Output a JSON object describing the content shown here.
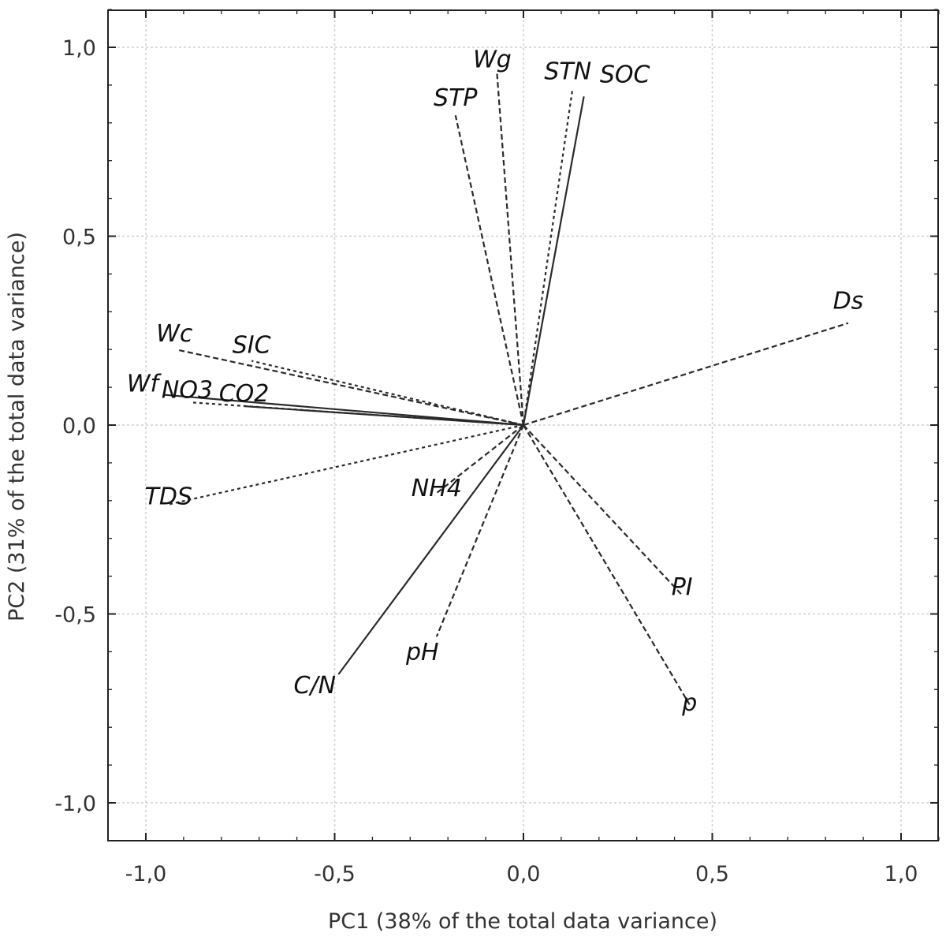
{
  "chart_data": {
    "type": "scatter",
    "subtype": "pca-loading-vectors",
    "title": "",
    "xlabel": "PC1 (38% of the total data variance)",
    "ylabel": "PC2 (31% of the total data variance)",
    "xlim": [
      -1.1,
      1.1
    ],
    "ylim": [
      -1.1,
      1.1
    ],
    "xticks": [
      -1.0,
      -0.5,
      0.0,
      0.5,
      1.0
    ],
    "yticks": [
      -1.0,
      -0.5,
      0.0,
      0.5,
      1.0
    ],
    "xtick_labels": [
      "-1,0",
      "-0,5",
      "0,0",
      "0,5",
      "1,0"
    ],
    "ytick_labels": [
      "-1,0",
      "-0,5",
      "0,0",
      "0,5",
      "1,0"
    ],
    "grid": true,
    "origin": [
      0,
      0
    ],
    "vectors": [
      {
        "name": "Wg",
        "x": -0.07,
        "y": 0.93,
        "style": "dashed"
      },
      {
        "name": "STP",
        "x": -0.18,
        "y": 0.82,
        "style": "dashed"
      },
      {
        "name": "STN",
        "x": 0.13,
        "y": 0.89,
        "style": "dotted"
      },
      {
        "name": "SOC",
        "x": 0.16,
        "y": 0.87,
        "style": "solid"
      },
      {
        "name": "Ds",
        "x": 0.86,
        "y": 0.27,
        "style": "dashed"
      },
      {
        "name": "Wc",
        "x": -0.92,
        "y": 0.2,
        "style": "dashed"
      },
      {
        "name": "SIC",
        "x": -0.72,
        "y": 0.17,
        "style": "dotted"
      },
      {
        "name": "Wf",
        "x": -0.95,
        "y": 0.08,
        "style": "solid"
      },
      {
        "name": "NO3",
        "x": -0.88,
        "y": 0.06,
        "style": "dotted"
      },
      {
        "name": "CO2",
        "x": -0.74,
        "y": 0.05,
        "style": "solid"
      },
      {
        "name": "TDS",
        "x": -0.94,
        "y": -0.21,
        "style": "dotted"
      },
      {
        "name": "NH4",
        "x": -0.23,
        "y": -0.18,
        "style": "dashed"
      },
      {
        "name": "C/N",
        "x": -0.49,
        "y": -0.66,
        "style": "solid"
      },
      {
        "name": "pH",
        "x": -0.23,
        "y": -0.56,
        "style": "dashed"
      },
      {
        "name": "PI",
        "x": 0.42,
        "y": -0.45,
        "style": "dashed"
      },
      {
        "name": "p",
        "x": 0.44,
        "y": -0.74,
        "style": "dashed"
      }
    ]
  }
}
